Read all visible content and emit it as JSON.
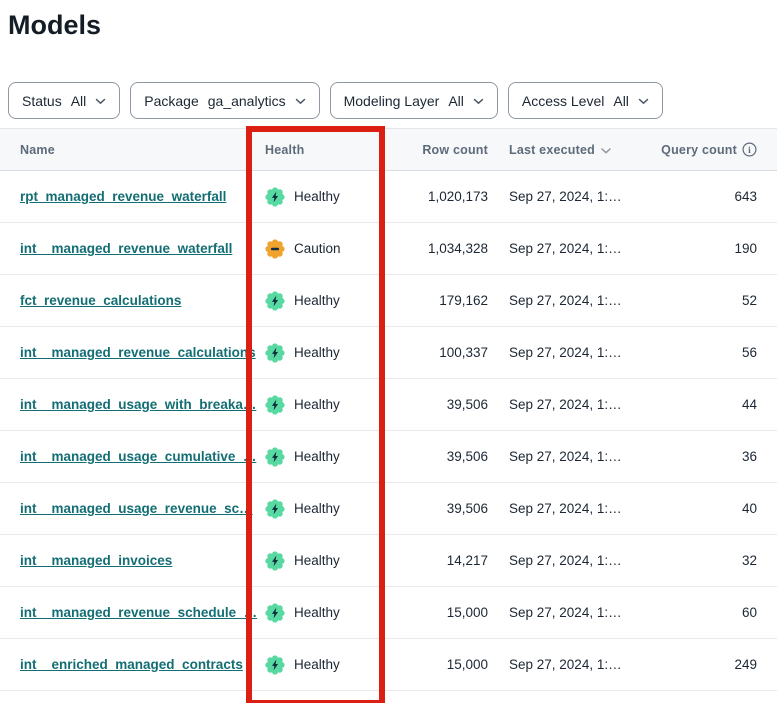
{
  "page": {
    "title": "Models"
  },
  "filters": [
    {
      "label": "Status",
      "value": "All"
    },
    {
      "label": "Package",
      "value": "ga_analytics"
    },
    {
      "label": "Modeling Layer",
      "value": "All"
    },
    {
      "label": "Access Level",
      "value": "All"
    }
  ],
  "table": {
    "columns": {
      "name": "Name",
      "health": "Health",
      "row_count": "Row count",
      "last_executed": "Last executed",
      "query_count": "Query count"
    },
    "rows": [
      {
        "name": "rpt_managed_revenue_waterfall",
        "health": "Healthy",
        "row_count": "1,020,173",
        "last_executed": "Sep 27, 2024, 1:…",
        "query_count": "643"
      },
      {
        "name": "int__managed_revenue_waterfall",
        "health": "Caution",
        "row_count": "1,034,328",
        "last_executed": "Sep 27, 2024, 1:…",
        "query_count": "190"
      },
      {
        "name": "fct_revenue_calculations",
        "health": "Healthy",
        "row_count": "179,162",
        "last_executed": "Sep 27, 2024, 1:…",
        "query_count": "52"
      },
      {
        "name": "int__managed_revenue_calculations",
        "health": "Healthy",
        "row_count": "100,337",
        "last_executed": "Sep 27, 2024, 1:…",
        "query_count": "56"
      },
      {
        "name": "int__managed_usage_with_breaka…",
        "health": "Healthy",
        "row_count": "39,506",
        "last_executed": "Sep 27, 2024, 1:…",
        "query_count": "44"
      },
      {
        "name": "int__managed_usage_cumulative_…",
        "health": "Healthy",
        "row_count": "39,506",
        "last_executed": "Sep 27, 2024, 1:…",
        "query_count": "36"
      },
      {
        "name": "int__managed_usage_revenue_sc…",
        "health": "Healthy",
        "row_count": "39,506",
        "last_executed": "Sep 27, 2024, 1:…",
        "query_count": "40"
      },
      {
        "name": "int__managed_invoices",
        "health": "Healthy",
        "row_count": "14,217",
        "last_executed": "Sep 27, 2024, 1:…",
        "query_count": "32"
      },
      {
        "name": "int__managed_revenue_schedule_…",
        "health": "Healthy",
        "row_count": "15,000",
        "last_executed": "Sep 27, 2024, 1:…",
        "query_count": "60"
      },
      {
        "name": "int__enriched_managed_contracts",
        "health": "Healthy",
        "row_count": "15,000",
        "last_executed": "Sep 27, 2024, 1:…",
        "query_count": "249"
      }
    ]
  },
  "colors": {
    "healthy_badge": "#59d9a2",
    "caution_badge": "#f0a42e",
    "badge_glyph": "#0f2e3f",
    "link": "#136e73",
    "annotation_red": "#dc1f13"
  },
  "annotation": {
    "type": "red-rectangle",
    "target": "health-column"
  }
}
